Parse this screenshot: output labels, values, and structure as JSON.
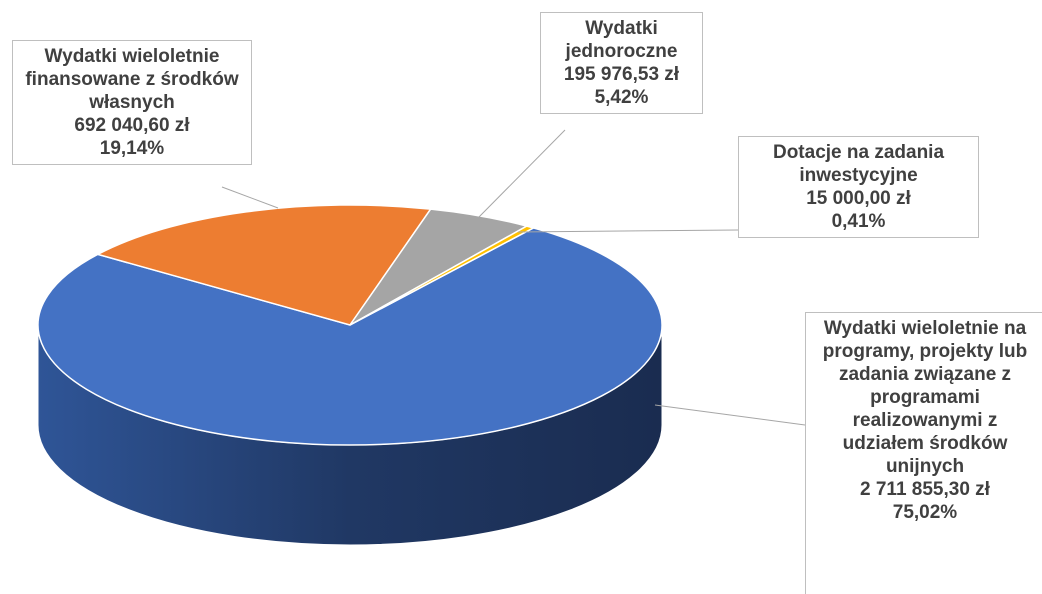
{
  "chart_data": {
    "type": "pie",
    "categories": [
      "Wydatki wieloletnie na programy, projekty lub zadania związane z programami realizowanymi z udziałem środków unijnych",
      "Wydatki wieloletnie finansowane z środków własnych",
      "Wydatki jednoroczne",
      "Dotacje na zadania inwestycyjne"
    ],
    "values": [
      2711855.3,
      692040.6,
      195976.53,
      15000.0
    ],
    "value_labels": [
      "2 711 855,30 zł",
      "692 040,60 zł",
      "195 976,53 zł",
      "15 000,00 zł"
    ],
    "percent_values": [
      75.02,
      19.14,
      5.42,
      0.41
    ],
    "percent_labels": [
      "75,02%",
      "19,14%",
      "5,42%",
      "0,41%"
    ],
    "colors": [
      "#4472c4",
      "#ed7d31",
      "#a5a5a5",
      "#ffc000"
    ]
  }
}
